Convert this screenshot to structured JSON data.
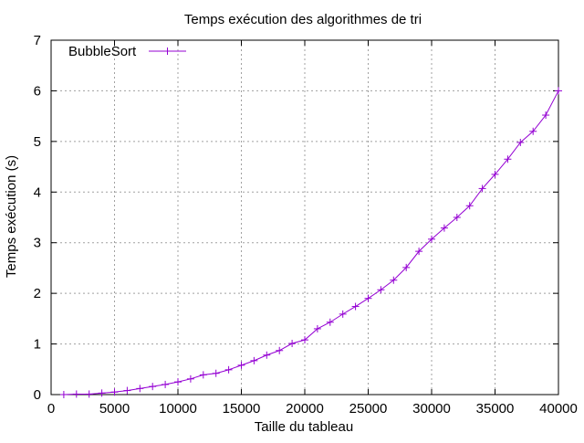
{
  "chart_data": {
    "type": "line",
    "title": "Temps exécution des algorithmes de tri",
    "xlabel": "Taille du tableau",
    "ylabel": "Temps exécution (s)",
    "xlim": [
      0,
      40000
    ],
    "ylim": [
      0,
      7
    ],
    "x_ticks": [
      0,
      5000,
      10000,
      15000,
      20000,
      25000,
      30000,
      35000,
      40000
    ],
    "y_ticks": [
      0,
      1,
      2,
      3,
      4,
      5,
      6,
      7
    ],
    "grid": true,
    "legend_position": "top-left",
    "series": [
      {
        "name": "BubbleSort",
        "color": "#9400d3",
        "marker": "plus",
        "x": [
          1000,
          2000,
          3000,
          4000,
          5000,
          6000,
          7000,
          8000,
          9000,
          10000,
          11000,
          12000,
          13000,
          14000,
          15000,
          16000,
          17000,
          18000,
          19000,
          20000,
          21000,
          22000,
          23000,
          24000,
          25000,
          26000,
          27000,
          28000,
          29000,
          30000,
          31000,
          32000,
          33000,
          34000,
          35000,
          36000,
          37000,
          38000,
          39000,
          40000
        ],
        "y": [
          0.0,
          0.01,
          0.01,
          0.03,
          0.05,
          0.08,
          0.12,
          0.16,
          0.2,
          0.25,
          0.31,
          0.39,
          0.42,
          0.49,
          0.58,
          0.67,
          0.78,
          0.87,
          1.01,
          1.08,
          1.3,
          1.43,
          1.59,
          1.74,
          1.9,
          2.07,
          2.26,
          2.51,
          2.83,
          3.07,
          3.29,
          3.5,
          3.73,
          4.07,
          4.35,
          4.65,
          4.98,
          5.2,
          5.52,
          6.0
        ]
      }
    ]
  }
}
